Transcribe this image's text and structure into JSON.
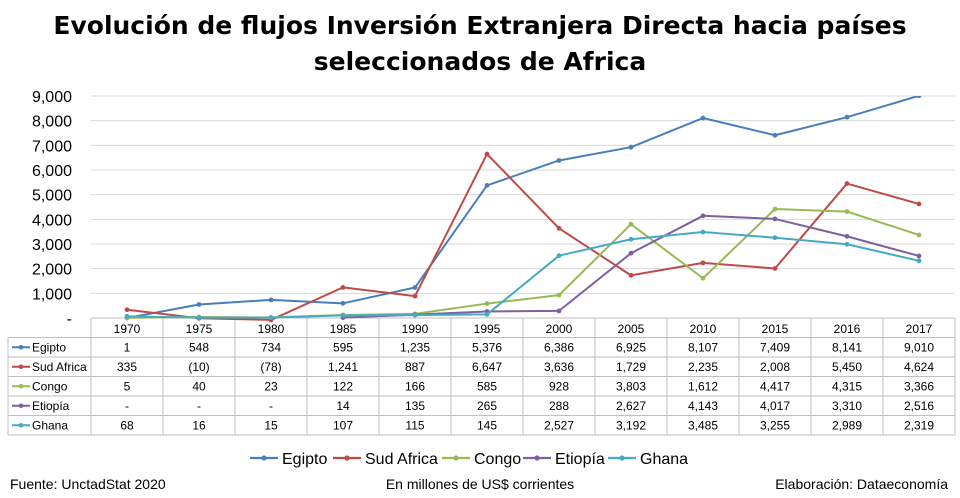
{
  "chart_data": {
    "type": "line",
    "title_line1": "Evolución de flujos Inversión Extranjera Directa hacia países",
    "title_line2": "seleccionados de Africa",
    "ylim": [
      0,
      9000
    ],
    "yticks": [
      0,
      1000,
      2000,
      3000,
      4000,
      5000,
      6000,
      7000,
      8000,
      9000
    ],
    "ytick_labels": [
      "-",
      "1,000",
      "2,000",
      "3,000",
      "4,000",
      "5,000",
      "6,000",
      "7,000",
      "8,000",
      "9,000"
    ],
    "categories": [
      "1970",
      "1975",
      "1980",
      "1985",
      "1990",
      "1995",
      "2000",
      "2005",
      "2010",
      "2015",
      "2016",
      "2017"
    ],
    "grid": true,
    "legend_position": "bottom",
    "series": [
      {
        "name": "Egipto",
        "color": "#4a7ebb",
        "values": [
          1,
          548,
          734,
          595,
          1235,
          5376,
          6386,
          6925,
          8107,
          7409,
          8141,
          9010
        ],
        "labels": [
          "1",
          "548",
          "734",
          "595",
          "1,235",
          "5,376",
          "6,386",
          "6,925",
          "8,107",
          "7,409",
          "8,141",
          "9,010"
        ]
      },
      {
        "name": "Sud Africa",
        "color": "#be4b48",
        "values": [
          335,
          -10,
          -78,
          1241,
          887,
          6647,
          3636,
          1729,
          2235,
          2008,
          5450,
          4624
        ],
        "labels": [
          "335",
          "(10)",
          "(78)",
          "1,241",
          "887",
          "6,647",
          "3,636",
          "1,729",
          "2,235",
          "2,008",
          "5,450",
          "4,624"
        ]
      },
      {
        "name": "Congo",
        "color": "#98b954",
        "values": [
          5,
          40,
          23,
          122,
          166,
          585,
          928,
          3803,
          1612,
          4417,
          4315,
          3366
        ],
        "labels": [
          "5",
          "40",
          "23",
          "122",
          "166",
          "585",
          "928",
          "3,803",
          "1,612",
          "4,417",
          "4,315",
          "3,366"
        ]
      },
      {
        "name": "Etiopía",
        "color": "#7d60a0",
        "values": [
          null,
          null,
          null,
          14,
          135,
          265,
          288,
          2627,
          4143,
          4017,
          3310,
          2516
        ],
        "labels": [
          "-",
          "-",
          "-",
          "14",
          "135",
          "265",
          "288",
          "2,627",
          "4,143",
          "4,017",
          "3,310",
          "2,516"
        ]
      },
      {
        "name": "Ghana",
        "color": "#46aac5",
        "values": [
          68,
          16,
          15,
          107,
          115,
          145,
          2527,
          3192,
          3485,
          3255,
          2989,
          2319
        ],
        "labels": [
          "68",
          "16",
          "15",
          "107",
          "115",
          "145",
          "2,527",
          "3,192",
          "3,485",
          "3,255",
          "2,989",
          "2,319"
        ]
      }
    ]
  },
  "footer": {
    "source": "Fuente: UnctadStat 2020",
    "units": "En millones de US$ corrientes",
    "credit": "Elaboración: Dataeconomía"
  }
}
